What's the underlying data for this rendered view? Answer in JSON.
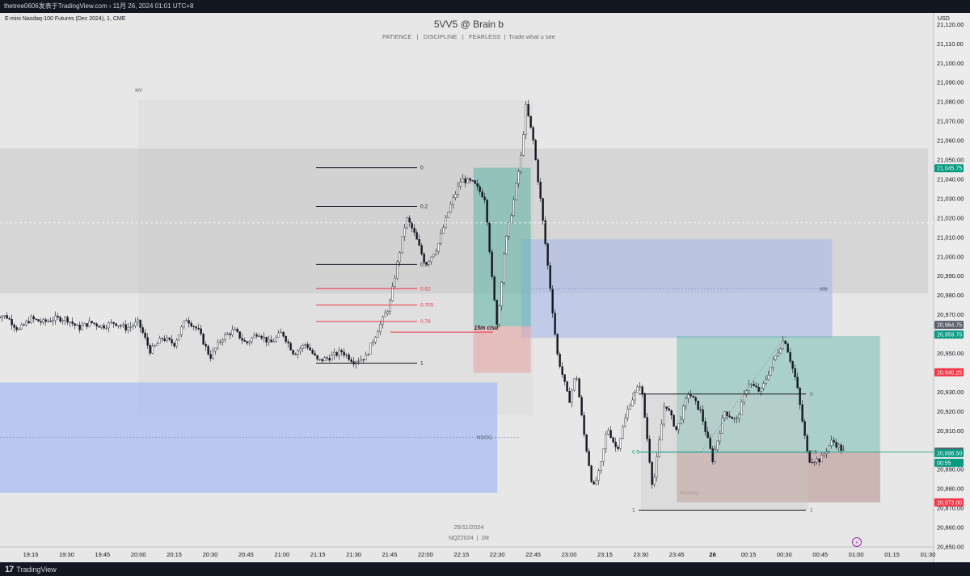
{
  "window": {
    "top_caption": "thetree0606发表于TradingView.com › 11月 26, 2024 01:01 UTC+8",
    "footer_brand": "TradingView"
  },
  "chart_data": {
    "type": "candlestick",
    "symbol_title": "E-mini Nasdaq-100 Futures (Dec 2024), 1, CME",
    "watermark_title": "5VV5 @ Brain b",
    "watermark_subtitle": "PATIENCE   |   DISCIPLINE   |   FEARLESS  |  Trade what u see",
    "date_watermark": "25/11/2024",
    "symbol_watermark": "NQZ2024  |  1M",
    "currency": "USD",
    "ylim": [
      20850,
      21126
    ],
    "y_ticks": [
      "21,120.00",
      "21,110.00",
      "21,100.00",
      "21,090.00",
      "21,080.00",
      "21,070.00",
      "21,060.00",
      "21,050.00",
      "21,040.00",
      "21,030.00",
      "21,020.00",
      "21,010.00",
      "21,000.00",
      "20,990.00",
      "20,980.00",
      "20,970.00",
      "20,960.00",
      "20,950.00",
      "20,940.00",
      "20,930.00",
      "20,920.00",
      "20,910.00",
      "20,900.00",
      "20,890.00",
      "20,880.00",
      "20,870.00",
      "20,860.00",
      "20,850.00"
    ],
    "x_ticks": [
      "19:15",
      "19:30",
      "19:45",
      "20:00",
      "20:15",
      "20:30",
      "20:45",
      "21:00",
      "21:15",
      "21:30",
      "21:45",
      "22:00",
      "22:15",
      "22:30",
      "22:45",
      "23:00",
      "23:15",
      "23:30",
      "23:45",
      "26",
      "00:15",
      "00:30",
      "00:45",
      "01:00",
      "01:15",
      "01:30"
    ],
    "price_labels": [
      {
        "text": "21,045.75",
        "price": 21045.75,
        "color": "#089981"
      },
      {
        "text": "20,964.75",
        "price": 20964.75,
        "color": "#5d606b"
      },
      {
        "text": "20,959.75",
        "price": 20959.75,
        "color": "#089981"
      },
      {
        "text": "20,940.25",
        "price": 20940.25,
        "color": "#f23645"
      },
      {
        "text": "20,899.25",
        "price": 20899.25,
        "color": "#5d606b"
      },
      {
        "text": "20,898.50",
        "price": 20898.5,
        "color": "#089981"
      },
      {
        "text": "00:55",
        "price": 20893.5,
        "color": "#089981"
      },
      {
        "text": "20,873.00",
        "price": 20873.0,
        "color": "#f23645"
      }
    ],
    "zones": [
      {
        "label": "NY",
        "t0": "20:00",
        "t1": "22:45",
        "p_low": 20918,
        "p_high": 21081,
        "color": "#d4d4d4",
        "opacity": 0.35
      },
      {
        "label": "",
        "t0": "19:00",
        "t1": "01:30",
        "p_low": 20981,
        "p_high": 21056,
        "color": "#c0c0c0",
        "opacity": 0.45
      },
      {
        "label": "NDOG",
        "t0": "19:00",
        "t1": "22:30",
        "p_low": 20878,
        "p_high": 20935,
        "color": "#a8bdf0",
        "opacity": 0.75
      },
      {
        "label": "sibi",
        "t0": "22:40",
        "t1": "00:50",
        "p_low": 20958,
        "p_high": 21009,
        "color": "#a8b9ea",
        "opacity": 0.6
      },
      {
        "label": "",
        "t0": "22:20",
        "t1": "22:44",
        "p_low": 20964,
        "p_high": 21046,
        "color": "#5fb5a5",
        "opacity": 0.55
      },
      {
        "label": "",
        "t0": "22:20",
        "t1": "22:44",
        "p_low": 20940,
        "p_high": 20964,
        "color": "#e8a0a0",
        "opacity": 0.55
      },
      {
        "label": "Monday",
        "t0": "23:45",
        "t1": "01:10",
        "p_low": 20873,
        "p_high": 20959,
        "color": "#5fb5a5",
        "opacity": 0.45
      },
      {
        "label": "",
        "t0": "23:45",
        "t1": "01:10",
        "p_low": 20873,
        "p_high": 20899,
        "color": "#e8a0a0",
        "opacity": 0.55
      },
      {
        "label": "",
        "t0": "23:30",
        "t1": "00:40",
        "p_low": 20869,
        "p_high": 20929,
        "color": "#c8c8c8",
        "opacity": 0.35
      }
    ],
    "fib_levels": [
      {
        "label": "0",
        "price": 21046,
        "color": "#131722"
      },
      {
        "label": "0.2",
        "price": 21026,
        "color": "#131722"
      },
      {
        "label": "0.5",
        "price": 20996,
        "color": "#131722"
      },
      {
        "label": "0.62",
        "price": 20983.5,
        "color": "#f23645"
      },
      {
        "label": "0.705",
        "price": 20975,
        "color": "#f23645"
      },
      {
        "label": "0.79",
        "price": 20966.5,
        "color": "#f23645"
      },
      {
        "label": "1",
        "price": 20945,
        "color": "#131722"
      }
    ],
    "fib2_levels": [
      {
        "label": "0",
        "price": 20929
      },
      {
        "label": "0.5",
        "price": 20899
      },
      {
        "label": "1",
        "price": 20869
      }
    ],
    "annotations": [
      {
        "text": "15m cisd",
        "t": "22:27",
        "price": 20961
      }
    ],
    "series_path": [
      [
        "19:00",
        20970
      ],
      [
        "19:05",
        20969
      ],
      [
        "19:10",
        20962
      ],
      [
        "19:15",
        20968
      ],
      [
        "19:20",
        20966
      ],
      [
        "19:25",
        20968
      ],
      [
        "19:30",
        20968
      ],
      [
        "19:35",
        20963
      ],
      [
        "19:40",
        20966
      ],
      [
        "19:45",
        20964
      ],
      [
        "19:50",
        20966
      ],
      [
        "19:55",
        20963
      ],
      [
        "20:00",
        20966
      ],
      [
        "20:05",
        20951
      ],
      [
        "20:10",
        20958
      ],
      [
        "20:15",
        20955
      ],
      [
        "20:20",
        20968
      ],
      [
        "20:25",
        20962
      ],
      [
        "20:30",
        20948
      ],
      [
        "20:35",
        20958
      ],
      [
        "20:40",
        20962
      ],
      [
        "20:45",
        20955
      ],
      [
        "20:50",
        20961
      ],
      [
        "20:55",
        20955
      ],
      [
        "21:00",
        20961
      ],
      [
        "21:05",
        20950
      ],
      [
        "21:10",
        20955
      ],
      [
        "21:15",
        20946
      ],
      [
        "21:20",
        20948
      ],
      [
        "21:25",
        20951
      ],
      [
        "21:30",
        20946
      ],
      [
        "21:35",
        20948
      ],
      [
        "21:40",
        20962
      ],
      [
        "21:45",
        20975
      ],
      [
        "21:48",
        20995
      ],
      [
        "21:52",
        21020
      ],
      [
        "21:55",
        21013
      ],
      [
        "22:00",
        20996
      ],
      [
        "22:05",
        21005
      ],
      [
        "22:10",
        21025
      ],
      [
        "22:15",
        21040
      ],
      [
        "22:20",
        21038
      ],
      [
        "22:25",
        21030
      ],
      [
        "22:28",
        20985
      ],
      [
        "22:30",
        20964
      ],
      [
        "22:33",
        21004
      ],
      [
        "22:37",
        21030
      ],
      [
        "22:40",
        21052
      ],
      [
        "22:42",
        21078
      ],
      [
        "22:45",
        21060
      ],
      [
        "22:48",
        21030
      ],
      [
        "22:52",
        20985
      ],
      [
        "22:55",
        20950
      ],
      [
        "23:00",
        20925
      ],
      [
        "23:03",
        20940
      ],
      [
        "23:06",
        20910
      ],
      [
        "23:10",
        20880
      ],
      [
        "23:13",
        20890
      ],
      [
        "23:16",
        20912
      ],
      [
        "23:20",
        20900
      ],
      [
        "23:25",
        20923
      ],
      [
        "23:30",
        20935
      ],
      [
        "23:35",
        20880
      ],
      [
        "23:40",
        20925
      ],
      [
        "23:45",
        20910
      ],
      [
        "23:50",
        20930
      ],
      [
        "23:55",
        20920
      ],
      [
        "00:00",
        20895
      ],
      [
        "00:05",
        20920
      ],
      [
        "00:10",
        20915
      ],
      [
        "00:15",
        20935
      ],
      [
        "00:20",
        20930
      ],
      [
        "00:25",
        20945
      ],
      [
        "00:30",
        20958
      ],
      [
        "00:35",
        20935
      ],
      [
        "00:40",
        20895
      ],
      [
        "00:45",
        20895
      ],
      [
        "00:50",
        20905
      ],
      [
        "00:55",
        20899
      ]
    ]
  }
}
